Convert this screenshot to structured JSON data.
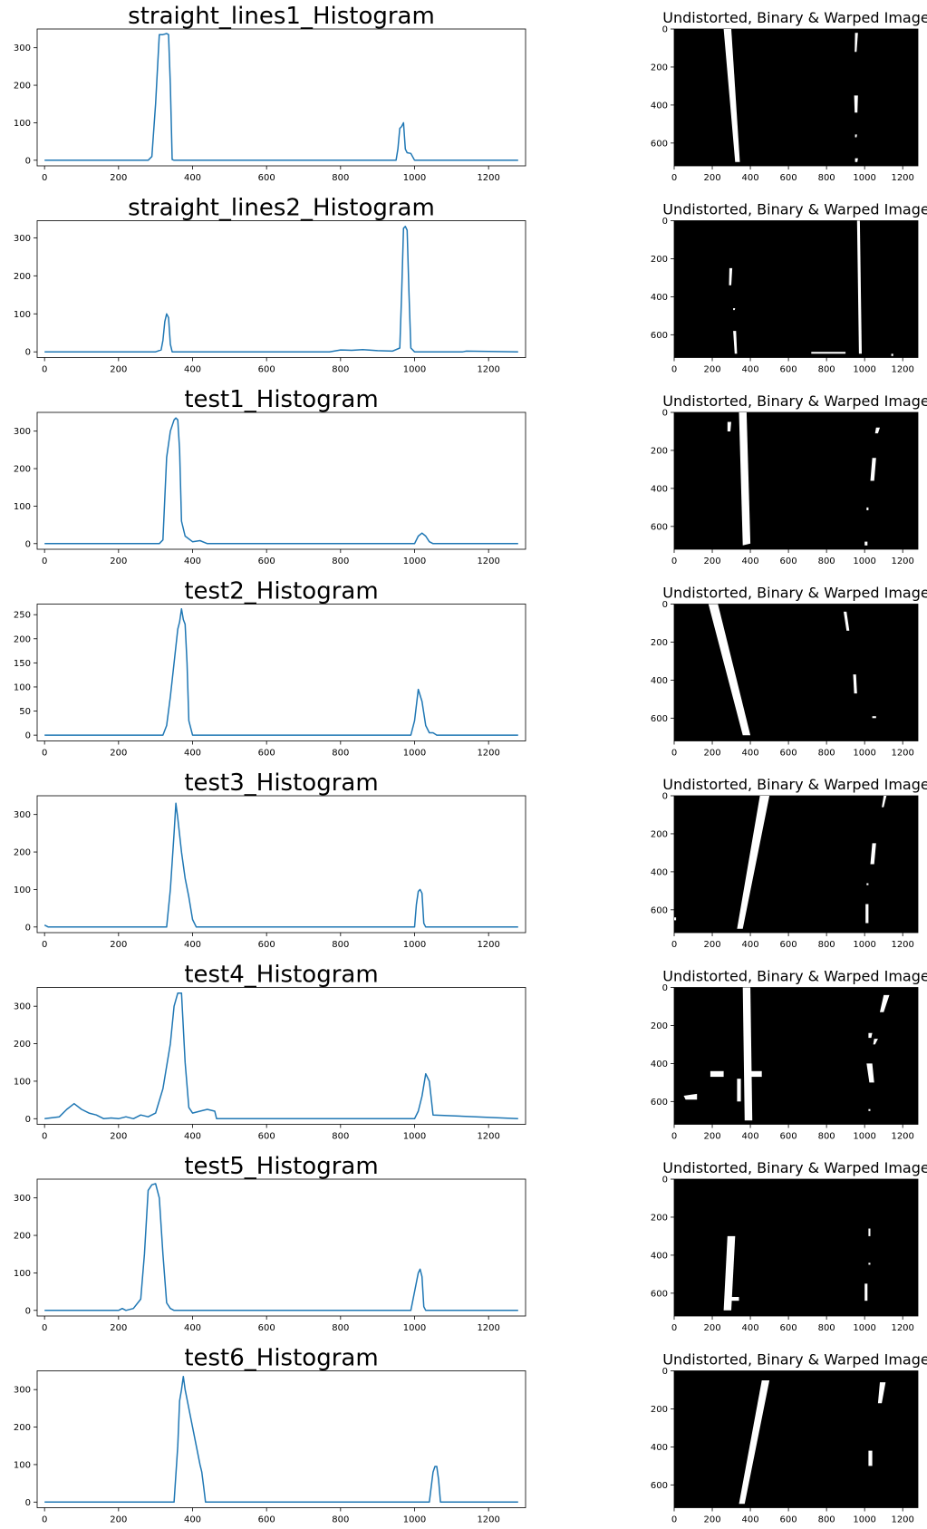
{
  "chart_data": [
    {
      "type": "line",
      "title": "straight_lines1_Histogram",
      "xlim": [
        -20,
        1300
      ],
      "ylim": [
        -15,
        350
      ],
      "xticks": [
        0,
        200,
        400,
        600,
        800,
        1000,
        1200
      ],
      "yticks": [
        0,
        100,
        200,
        300
      ],
      "color": "#1f77b4",
      "x": [
        0,
        280,
        290,
        300,
        310,
        320,
        330,
        335,
        340,
        345,
        350,
        950,
        955,
        960,
        965,
        970,
        975,
        980,
        990,
        1000,
        1280
      ],
      "y": [
        0,
        0,
        10,
        150,
        335,
        335,
        338,
        335,
        200,
        2,
        0,
        0,
        30,
        85,
        90,
        100,
        30,
        20,
        18,
        0,
        0
      ],
      "image": {
        "title": "Undistorted, Binary & Warped Image",
        "xticks": [
          0,
          200,
          400,
          600,
          800,
          1000,
          1200
        ],
        "yticks": [
          0,
          200,
          400,
          600
        ]
      }
    },
    {
      "type": "line",
      "title": "straight_lines2_Histogram",
      "xlim": [
        -20,
        1300
      ],
      "ylim": [
        -15,
        345
      ],
      "xticks": [
        0,
        200,
        400,
        600,
        800,
        1000,
        1200
      ],
      "yticks": [
        0,
        100,
        200,
        300
      ],
      "color": "#1f77b4",
      "x": [
        0,
        300,
        315,
        320,
        325,
        330,
        335,
        340,
        345,
        770,
        800,
        830,
        860,
        900,
        940,
        960,
        965,
        970,
        975,
        980,
        985,
        990,
        1000,
        1130,
        1140,
        1280
      ],
      "y": [
        0,
        0,
        5,
        30,
        80,
        100,
        90,
        20,
        0,
        0,
        5,
        4,
        6,
        3,
        2,
        10,
        150,
        325,
        330,
        320,
        150,
        10,
        0,
        0,
        2,
        0
      ],
      "image": {
        "title": "Undistorted, Binary & Warped Image",
        "xticks": [
          0,
          200,
          400,
          600,
          800,
          1000,
          1200
        ],
        "yticks": [
          0,
          200,
          400,
          600
        ]
      }
    },
    {
      "type": "line",
      "title": "test1_Histogram",
      "xlim": [
        -20,
        1300
      ],
      "ylim": [
        -15,
        350
      ],
      "xticks": [
        0,
        200,
        400,
        600,
        800,
        1000,
        1200
      ],
      "yticks": [
        0,
        100,
        200,
        300
      ],
      "color": "#1f77b4",
      "x": [
        0,
        310,
        320,
        330,
        340,
        350,
        355,
        360,
        365,
        370,
        380,
        400,
        420,
        440,
        1000,
        1010,
        1020,
        1030,
        1040,
        1050,
        1280
      ],
      "y": [
        0,
        0,
        10,
        230,
        300,
        330,
        335,
        330,
        250,
        60,
        20,
        5,
        8,
        0,
        0,
        20,
        28,
        20,
        5,
        0,
        0
      ],
      "image": {
        "title": "Undistorted, Binary & Warped Image",
        "xticks": [
          0,
          200,
          400,
          600,
          800,
          1000,
          1200
        ],
        "yticks": [
          0,
          200,
          400,
          600
        ]
      }
    },
    {
      "type": "line",
      "title": "test2_Histogram",
      "xlim": [
        -20,
        1300
      ],
      "ylim": [
        -12,
        272
      ],
      "xticks": [
        0,
        200,
        400,
        600,
        800,
        1000,
        1200
      ],
      "yticks": [
        0,
        50,
        100,
        150,
        200,
        250
      ],
      "color": "#1f77b4",
      "x": [
        0,
        320,
        330,
        340,
        350,
        360,
        365,
        370,
        375,
        380,
        385,
        390,
        400,
        990,
        1000,
        1010,
        1020,
        1030,
        1040,
        1050,
        1060,
        1280
      ],
      "y": [
        0,
        0,
        20,
        80,
        150,
        220,
        235,
        262,
        240,
        230,
        150,
        30,
        0,
        0,
        30,
        95,
        70,
        20,
        5,
        5,
        0,
        0
      ],
      "image": {
        "title": "Undistorted, Binary & Warped Image",
        "xticks": [
          0,
          200,
          400,
          600,
          800,
          1000,
          1200
        ],
        "yticks": [
          0,
          200,
          400,
          600
        ]
      }
    },
    {
      "type": "line",
      "title": "test3_Histogram",
      "xlim": [
        -20,
        1300
      ],
      "ylim": [
        -15,
        350
      ],
      "xticks": [
        0,
        200,
        400,
        600,
        800,
        1000,
        1200
      ],
      "yticks": [
        0,
        100,
        200,
        300
      ],
      "color": "#1f77b4",
      "x": [
        0,
        10,
        330,
        340,
        350,
        355,
        360,
        370,
        380,
        390,
        400,
        410,
        1000,
        1005,
        1010,
        1015,
        1020,
        1025,
        1030,
        1280
      ],
      "y": [
        5,
        0,
        0,
        100,
        250,
        330,
        290,
        200,
        130,
        80,
        20,
        0,
        0,
        60,
        95,
        100,
        90,
        10,
        0,
        0
      ],
      "image": {
        "title": "Undistorted, Binary & Warped Image",
        "xticks": [
          0,
          200,
          400,
          600,
          800,
          1000,
          1200
        ],
        "yticks": [
          0,
          200,
          400,
          600
        ]
      }
    },
    {
      "type": "line",
      "title": "test4_Histogram",
      "xlim": [
        -20,
        1300
      ],
      "ylim": [
        -15,
        350
      ],
      "xticks": [
        0,
        200,
        400,
        600,
        800,
        1000,
        1200
      ],
      "yticks": [
        0,
        100,
        200,
        300
      ],
      "color": "#1f77b4",
      "x": [
        0,
        40,
        60,
        80,
        100,
        120,
        140,
        160,
        180,
        200,
        220,
        240,
        260,
        280,
        300,
        320,
        340,
        350,
        360,
        370,
        380,
        390,
        400,
        420,
        440,
        460,
        465,
        1000,
        1010,
        1020,
        1030,
        1040,
        1050,
        1280
      ],
      "y": [
        0,
        5,
        25,
        40,
        25,
        15,
        10,
        0,
        2,
        0,
        5,
        0,
        10,
        5,
        15,
        80,
        200,
        300,
        335,
        335,
        150,
        30,
        15,
        20,
        25,
        20,
        0,
        0,
        20,
        60,
        120,
        100,
        10,
        0
      ],
      "image": {
        "title": "Undistorted, Binary & Warped Image",
        "xticks": [
          0,
          200,
          400,
          600,
          800,
          1000,
          1200
        ],
        "yticks": [
          0,
          200,
          400,
          600
        ]
      }
    },
    {
      "type": "line",
      "title": "test5_Histogram",
      "xlim": [
        -20,
        1300
      ],
      "ylim": [
        -15,
        350
      ],
      "xticks": [
        0,
        200,
        400,
        600,
        800,
        1000,
        1200
      ],
      "yticks": [
        0,
        100,
        200,
        300
      ],
      "color": "#1f77b4",
      "x": [
        0,
        200,
        210,
        220,
        240,
        260,
        270,
        280,
        290,
        300,
        310,
        320,
        330,
        340,
        350,
        990,
        1000,
        1010,
        1015,
        1020,
        1025,
        1030,
        1280
      ],
      "y": [
        0,
        0,
        5,
        0,
        5,
        30,
        150,
        320,
        335,
        338,
        300,
        150,
        20,
        5,
        0,
        0,
        50,
        100,
        110,
        90,
        10,
        0,
        0
      ],
      "image": {
        "title": "Undistorted, Binary & Warped Image",
        "xticks": [
          0,
          200,
          400,
          600,
          800,
          1000,
          1200
        ],
        "yticks": [
          0,
          200,
          400,
          600
        ]
      }
    },
    {
      "type": "line",
      "title": "test6_Histogram",
      "xlim": [
        -20,
        1300
      ],
      "ylim": [
        -15,
        350
      ],
      "xticks": [
        0,
        200,
        400,
        600,
        800,
        1000,
        1200
      ],
      "yticks": [
        0,
        100,
        200,
        300
      ],
      "color": "#1f77b4",
      "x": [
        0,
        350,
        360,
        365,
        370,
        375,
        380,
        390,
        400,
        410,
        420,
        425,
        430,
        435,
        1040,
        1050,
        1055,
        1060,
        1065,
        1070,
        1280
      ],
      "y": [
        0,
        0,
        150,
        270,
        300,
        335,
        300,
        250,
        200,
        150,
        100,
        80,
        40,
        0,
        0,
        80,
        95,
        95,
        60,
        0,
        0
      ],
      "image": {
        "title": "Undistorted, Binary & Warped Image",
        "xticks": [
          0,
          200,
          400,
          600,
          800,
          1000,
          1200
        ],
        "yticks": [
          0,
          200,
          400,
          600
        ]
      }
    }
  ]
}
